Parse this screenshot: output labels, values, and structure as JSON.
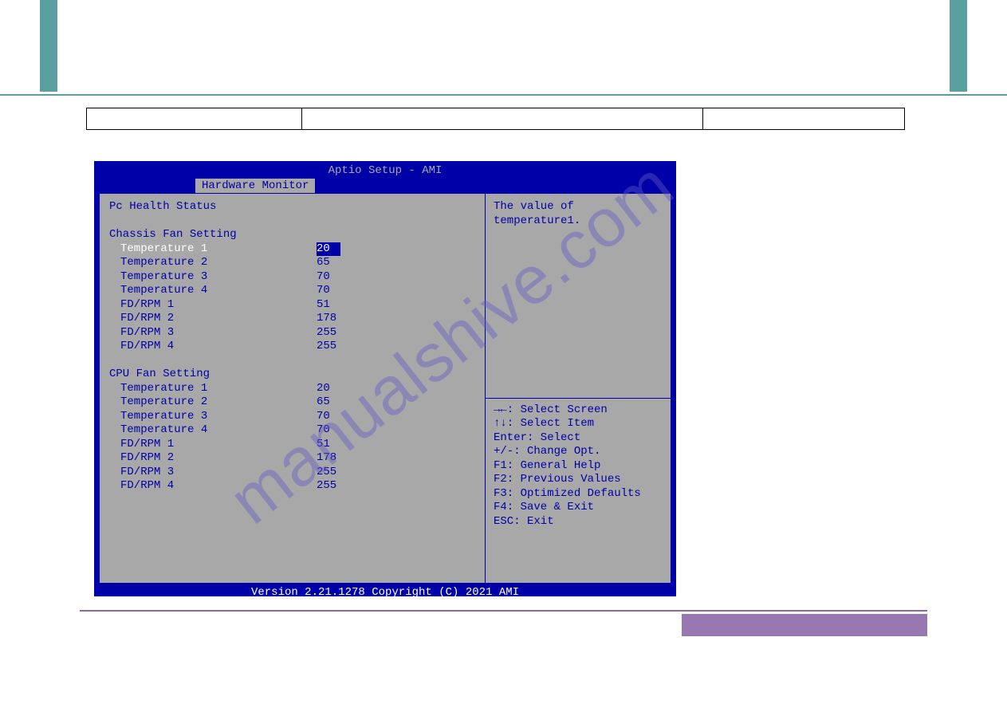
{
  "watermark": "manualshive.com",
  "subtitle": "",
  "bios": {
    "title": "Aptio Setup - AMI",
    "tab": "Hardware Monitor",
    "footer": "Version 2.21.1278 Copyright (C) 2021 AMI",
    "left": {
      "pc_health": "Pc Health Status",
      "chassis_header": "Chassis Fan Setting",
      "chassis": [
        {
          "label": "Temperature 1",
          "value": "20",
          "selected": true
        },
        {
          "label": "Temperature 2",
          "value": "65",
          "selected": false
        },
        {
          "label": "Temperature 3",
          "value": "70",
          "selected": false
        },
        {
          "label": "Temperature 4",
          "value": "70",
          "selected": false
        },
        {
          "label": "FD/RPM 1",
          "value": "51",
          "selected": false
        },
        {
          "label": "FD/RPM 2",
          "value": "178",
          "selected": false
        },
        {
          "label": "FD/RPM 3",
          "value": "255",
          "selected": false
        },
        {
          "label": "FD/RPM 4",
          "value": "255",
          "selected": false
        }
      ],
      "cpu_header": "CPU Fan Setting",
      "cpu": [
        {
          "label": "Temperature 1",
          "value": "20",
          "selected": false
        },
        {
          "label": "Temperature 2",
          "value": "65",
          "selected": false
        },
        {
          "label": "Temperature 3",
          "value": "70",
          "selected": false
        },
        {
          "label": "Temperature 4",
          "value": "70",
          "selected": false
        },
        {
          "label": "FD/RPM 1",
          "value": "51",
          "selected": false
        },
        {
          "label": "FD/RPM 2",
          "value": "178",
          "selected": false
        },
        {
          "label": "FD/RPM 3",
          "value": "255",
          "selected": false
        },
        {
          "label": "FD/RPM 4",
          "value": "255",
          "selected": false
        }
      ]
    },
    "right": {
      "help": "The value of temperature1.",
      "keys": [
        "→←: Select Screen",
        "↑↓: Select Item",
        "Enter: Select",
        "+/-: Change Opt.",
        "F1: General Help",
        "F2: Previous Values",
        "F3: Optimized Defaults",
        "F4: Save & Exit",
        "ESC: Exit"
      ]
    }
  },
  "colors": {
    "teal": "#5aa0a0",
    "bios_blue": "#0000a8",
    "bios_gray": "#a8a8a8",
    "purple": "#9878b0"
  }
}
